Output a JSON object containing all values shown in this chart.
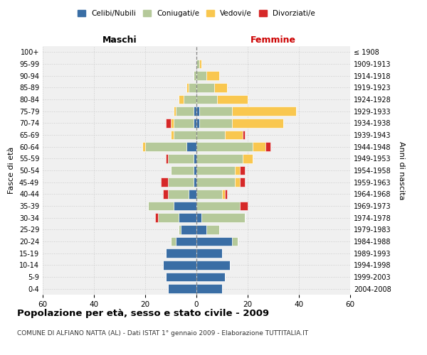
{
  "age_groups": [
    "0-4",
    "5-9",
    "10-14",
    "15-19",
    "20-24",
    "25-29",
    "30-34",
    "35-39",
    "40-44",
    "45-49",
    "50-54",
    "55-59",
    "60-64",
    "65-69",
    "70-74",
    "75-79",
    "80-84",
    "85-89",
    "90-94",
    "95-99",
    "100+"
  ],
  "birth_years": [
    "2004-2008",
    "1999-2003",
    "1994-1998",
    "1989-1993",
    "1984-1988",
    "1979-1983",
    "1974-1978",
    "1969-1973",
    "1964-1968",
    "1959-1963",
    "1954-1958",
    "1949-1953",
    "1944-1948",
    "1939-1943",
    "1934-1938",
    "1929-1933",
    "1924-1928",
    "1919-1923",
    "1914-1918",
    "1909-1913",
    "≤ 1908"
  ],
  "colors": {
    "celibi": "#3a6ea5",
    "coniugati": "#b5c99a",
    "vedovi": "#f9c74f",
    "divorziati": "#d62828"
  },
  "maschi": {
    "celibi": [
      11,
      12,
      13,
      12,
      8,
      6,
      7,
      9,
      3,
      1,
      1,
      1,
      4,
      0,
      1,
      1,
      0,
      0,
      0,
      0,
      0
    ],
    "coniugati": [
      0,
      0,
      0,
      0,
      2,
      1,
      8,
      10,
      8,
      10,
      9,
      10,
      16,
      9,
      8,
      7,
      5,
      3,
      1,
      0,
      0
    ],
    "vedovi": [
      0,
      0,
      0,
      0,
      0,
      0,
      0,
      0,
      0,
      0,
      0,
      0,
      1,
      1,
      1,
      1,
      2,
      1,
      0,
      0,
      0
    ],
    "divorziati": [
      0,
      0,
      0,
      0,
      0,
      0,
      1,
      0,
      2,
      3,
      0,
      1,
      0,
      0,
      2,
      0,
      0,
      0,
      0,
      0,
      0
    ]
  },
  "femmine": {
    "celibi": [
      10,
      11,
      13,
      10,
      14,
      4,
      2,
      0,
      0,
      0,
      0,
      0,
      0,
      0,
      1,
      1,
      0,
      0,
      0,
      0,
      0
    ],
    "coniugati": [
      0,
      0,
      0,
      0,
      2,
      5,
      17,
      17,
      10,
      15,
      15,
      18,
      22,
      11,
      13,
      13,
      8,
      7,
      4,
      1,
      0
    ],
    "vedovi": [
      0,
      0,
      0,
      0,
      0,
      0,
      0,
      0,
      1,
      2,
      2,
      4,
      5,
      7,
      20,
      25,
      12,
      5,
      5,
      1,
      0
    ],
    "divorziati": [
      0,
      0,
      0,
      0,
      0,
      0,
      0,
      3,
      1,
      2,
      2,
      0,
      2,
      1,
      0,
      0,
      0,
      0,
      0,
      0,
      0
    ]
  },
  "xlim": 60,
  "title": "Popolazione per età, sesso e stato civile - 2009",
  "subtitle": "COMUNE DI ALFIANO NATTA (AL) - Dati ISTAT 1° gennaio 2009 - Elaborazione TUTTITALIA.IT",
  "ylabel_left": "Fasce di età",
  "ylabel_right": "Anni di nascita",
  "xlabel_maschi": "Maschi",
  "xlabel_femmine": "Femmine",
  "legend_labels": [
    "Celibi/Nubili",
    "Coniugati/e",
    "Vedovi/e",
    "Divorziati/e"
  ],
  "bg_color": "#f0f0f0",
  "grid_color": "#cccccc"
}
